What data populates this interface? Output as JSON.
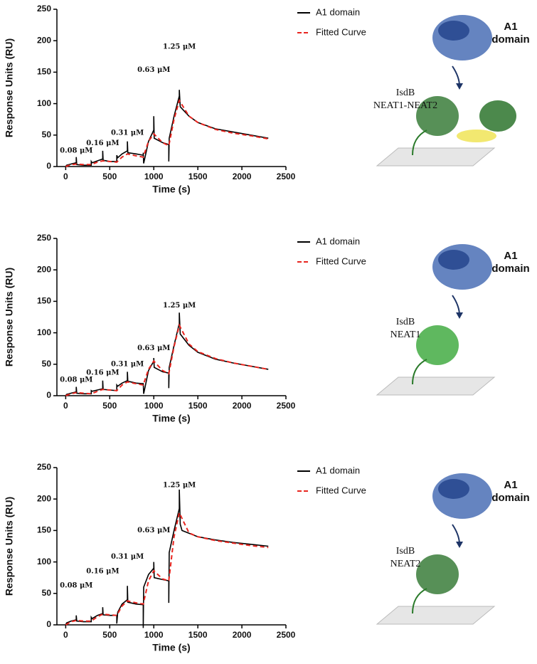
{
  "chart_data": [
    {
      "type": "line",
      "xlabel": "Time (s)",
      "ylabel": "Response Units (RU)",
      "xlim": [
        -100,
        2500
      ],
      "ylim": [
        0,
        250
      ],
      "xticks": [
        0,
        500,
        1000,
        1500,
        2000,
        2500
      ],
      "yticks": [
        0,
        50,
        100,
        150,
        200,
        250
      ],
      "legend": "right",
      "series": [
        {
          "name": "A1 domain",
          "color": "#000000",
          "dash": false,
          "x": [
            0,
            10,
            60,
            120,
            120,
            125,
            200,
            290,
            290,
            300,
            360,
            420,
            420,
            425,
            500,
            580,
            580,
            590,
            640,
            700,
            700,
            705,
            800,
            880,
            880,
            885,
            940,
            1000,
            1000,
            1005,
            1100,
            1170,
            1170,
            1175,
            1230,
            1290,
            1290,
            1300,
            1400,
            1500,
            1700,
            1900,
            2100,
            2300
          ],
          "values": [
            0,
            2,
            4,
            6,
            15,
            3,
            2,
            2,
            8,
            6,
            9,
            12,
            25,
            10,
            8,
            8,
            18,
            14,
            20,
            25,
            40,
            22,
            20,
            18,
            22,
            5,
            40,
            58,
            80,
            45,
            38,
            35,
            8,
            45,
            80,
            112,
            122,
            95,
            80,
            70,
            60,
            55,
            50,
            45
          ]
        },
        {
          "name": "Fitted Curve",
          "color": "#e8251f",
          "dash": true,
          "x": [
            0,
            60,
            120,
            200,
            290,
            360,
            420,
            500,
            580,
            640,
            700,
            800,
            880,
            940,
            1000,
            1100,
            1170,
            1230,
            1290,
            1400,
            1500,
            1700,
            1900,
            2100,
            2300
          ],
          "values": [
            0,
            3,
            4,
            3,
            3,
            7,
            9,
            8,
            7,
            15,
            20,
            17,
            15,
            40,
            52,
            38,
            33,
            75,
            105,
            80,
            70,
            59,
            53,
            49,
            44
          ]
        }
      ],
      "annotations": [
        {
          "text": "0.08 μM",
          "x": 120,
          "y": 25
        },
        {
          "text": "0.16 μM",
          "x": 420,
          "y": 37
        },
        {
          "text": "0.31 μM",
          "x": 700,
          "y": 53
        },
        {
          "text": "0.63 μM",
          "x": 1000,
          "y": 153
        },
        {
          "text": "1.25 μM",
          "x": 1290,
          "y": 190
        }
      ],
      "illustration": {
        "protein": [
          "A1",
          "domain"
        ],
        "target": [
          "IsdB",
          "NEAT1-NEAT2"
        ],
        "target_color": "#1f6b1f"
      }
    },
    {
      "type": "line",
      "xlabel": "Time (s)",
      "ylabel": "Response Units (RU)",
      "xlim": [
        -100,
        2500
      ],
      "ylim": [
        0,
        250
      ],
      "xticks": [
        0,
        500,
        1000,
        1500,
        2000,
        2500
      ],
      "yticks": [
        0,
        50,
        100,
        150,
        200,
        250
      ],
      "legend": "right",
      "series": [
        {
          "name": "A1 domain",
          "color": "#000000",
          "dash": false,
          "x": [
            0,
            10,
            60,
            120,
            120,
            125,
            200,
            290,
            290,
            300,
            360,
            420,
            420,
            425,
            500,
            580,
            580,
            590,
            640,
            700,
            700,
            705,
            800,
            880,
            880,
            885,
            940,
            1000,
            1000,
            1005,
            1100,
            1170,
            1170,
            1175,
            1230,
            1290,
            1290,
            1300,
            1400,
            1500,
            1700,
            1900,
            2100,
            2300
          ],
          "values": [
            0,
            2,
            4,
            6,
            14,
            4,
            3,
            3,
            8,
            7,
            9,
            11,
            24,
            10,
            9,
            8,
            17,
            15,
            20,
            24,
            38,
            23,
            20,
            19,
            20,
            3,
            40,
            55,
            60,
            45,
            38,
            36,
            12,
            45,
            80,
            115,
            132,
            98,
            80,
            69,
            58,
            52,
            47,
            42
          ]
        },
        {
          "name": "Fitted Curve",
          "color": "#e8251f",
          "dash": true,
          "x": [
            0,
            60,
            120,
            200,
            290,
            360,
            420,
            500,
            580,
            640,
            700,
            800,
            880,
            940,
            1000,
            1100,
            1170,
            1230,
            1290,
            1400,
            1500,
            1700,
            1900,
            2100,
            2300
          ],
          "values": [
            0,
            3,
            5,
            4,
            3,
            7,
            10,
            9,
            8,
            17,
            22,
            19,
            17,
            42,
            55,
            40,
            35,
            78,
            112,
            82,
            70,
            59,
            52,
            47,
            42
          ]
        }
      ],
      "annotations": [
        {
          "text": "0.08 μM",
          "x": 120,
          "y": 25
        },
        {
          "text": "0.16 μM",
          "x": 420,
          "y": 36
        },
        {
          "text": "0.31 μM",
          "x": 700,
          "y": 50
        },
        {
          "text": "0.63 μM",
          "x": 1000,
          "y": 75
        },
        {
          "text": "1.25 μM",
          "x": 1290,
          "y": 143
        }
      ],
      "illustration": {
        "protein": [
          "A1",
          "domain"
        ],
        "target": [
          "IsdB",
          "NEAT1"
        ],
        "target_color": "#2aa02a"
      }
    },
    {
      "type": "line",
      "xlabel": "Time (s)",
      "ylabel": "Response Units (RU)",
      "xlim": [
        -100,
        2500
      ],
      "ylim": [
        0,
        250
      ],
      "xticks": [
        0,
        500,
        1000,
        1500,
        2000,
        2500
      ],
      "yticks": [
        0,
        50,
        100,
        150,
        200,
        250
      ],
      "legend": "right",
      "series": [
        {
          "name": "A1 domain",
          "color": "#000000",
          "dash": false,
          "x": [
            0,
            10,
            60,
            120,
            120,
            125,
            200,
            290,
            290,
            300,
            360,
            420,
            420,
            425,
            500,
            580,
            580,
            590,
            640,
            700,
            700,
            705,
            800,
            880,
            880,
            885,
            940,
            1000,
            1000,
            1005,
            1100,
            1170,
            1170,
            1175,
            1230,
            1290,
            1290,
            1300,
            1320,
            1500,
            1700,
            1900,
            2100,
            2300
          ],
          "values": [
            0,
            3,
            6,
            8,
            15,
            6,
            5,
            5,
            12,
            10,
            15,
            18,
            28,
            16,
            15,
            15,
            2,
            20,
            33,
            40,
            62,
            36,
            33,
            32,
            -5,
            60,
            80,
            90,
            100,
            75,
            72,
            70,
            35,
            115,
            150,
            185,
            215,
            160,
            150,
            140,
            135,
            131,
            128,
            125
          ]
        },
        {
          "name": "Fitted Curve",
          "color": "#e8251f",
          "dash": true,
          "x": [
            0,
            60,
            120,
            200,
            290,
            360,
            420,
            500,
            580,
            640,
            700,
            800,
            880,
            940,
            1000,
            1100,
            1170,
            1230,
            1290,
            1400,
            1500,
            1700,
            1900,
            2100,
            2300
          ],
          "values": [
            0,
            5,
            7,
            6,
            6,
            13,
            17,
            16,
            15,
            30,
            38,
            35,
            33,
            70,
            86,
            73,
            70,
            140,
            178,
            146,
            140,
            134,
            130,
            126,
            123
          ]
        }
      ],
      "annotations": [
        {
          "text": "0.08 μM",
          "x": 120,
          "y": 62
        },
        {
          "text": "0.16 μM",
          "x": 420,
          "y": 85
        },
        {
          "text": "0.31 μM",
          "x": 700,
          "y": 108
        },
        {
          "text": "0.63 μM",
          "x": 1000,
          "y": 150
        },
        {
          "text": "1.25 μM",
          "x": 1290,
          "y": 222
        }
      ],
      "illustration": {
        "protein": [
          "A1",
          "domain"
        ],
        "target": [
          "IsdB",
          "NEAT2"
        ],
        "target_color": "#1f6b1f"
      }
    }
  ]
}
